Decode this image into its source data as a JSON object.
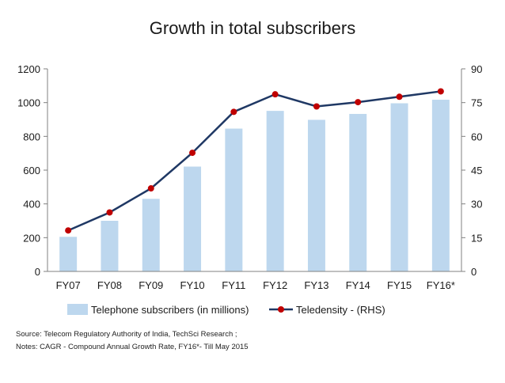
{
  "chart_data": {
    "type": "bar",
    "title": "Growth in total subscribers",
    "categories": [
      "FY07",
      "FY08",
      "FY09",
      "FY10",
      "FY11",
      "FY12",
      "FY13",
      "FY14",
      "FY15",
      "FY16*"
    ],
    "series": [
      {
        "name": "Telephone subscribers (in millions)",
        "type": "bar",
        "axis": "left",
        "values": [
          205,
          300,
          430,
          621,
          846,
          951,
          898,
          933,
          996,
          1017
        ]
      },
      {
        "name": "Teledensity - (RHS)",
        "type": "line",
        "axis": "right",
        "values": [
          18.2,
          26.2,
          36.9,
          52.7,
          70.9,
          78.7,
          73.3,
          75.2,
          77.6,
          80.0
        ]
      }
    ],
    "ylim": [
      0,
      1200
    ],
    "yticks": [
      "0",
      "200",
      "400",
      "600",
      "800",
      "1000",
      "1200"
    ],
    "y2lim": [
      0,
      90
    ],
    "y2ticks": [
      "0",
      "15",
      "30",
      "45",
      "60",
      "75",
      "90"
    ],
    "legend_position": "bottom",
    "grid": false,
    "colors": {
      "bar": "#bdd7ee",
      "line": "#1f3864",
      "marker": "#c00000"
    }
  },
  "notes": {
    "source": "Source:  Telecom Regulatory Authority of India, TechSci Research ;",
    "notes": "Notes: CAGR - Compound Annual Growth Rate, FY16*- Till  May 2015"
  }
}
